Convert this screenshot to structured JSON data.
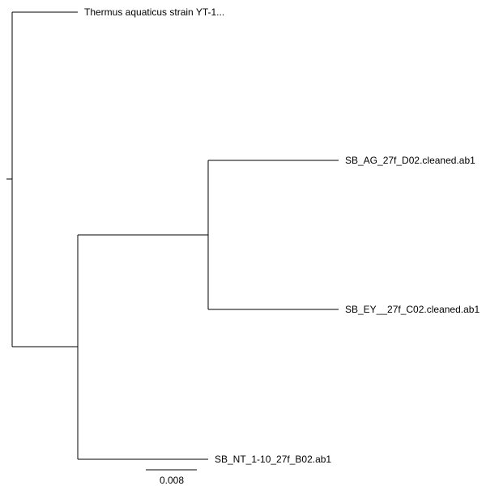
{
  "tree": {
    "newick": "(Thermus aquaticus strain YT-1...,((SB_AG_27f_D02.cleaned.ab1,SB_EY__27f_C02.cleaned.ab1),SB_NT_1-10_27f_B02.ab1));",
    "root": {
      "children": [
        {
          "label": "Thermus aquaticus strain YT-1..."
        },
        {
          "children": [
            {
              "children": [
                {
                  "label": "SB_AG_27f_D02.cleaned.ab1"
                },
                {
                  "label": "SB_EY__27f_C02.cleaned.ab1"
                }
              ]
            },
            {
              "label": "SB_NT_1-10_27f_B02.ab1"
            }
          ]
        }
      ]
    },
    "scale_bar": {
      "label": "0.008",
      "value": 0.008
    },
    "colors": {
      "branch": "#000000",
      "text": "#000000",
      "background": "#ffffff"
    }
  }
}
